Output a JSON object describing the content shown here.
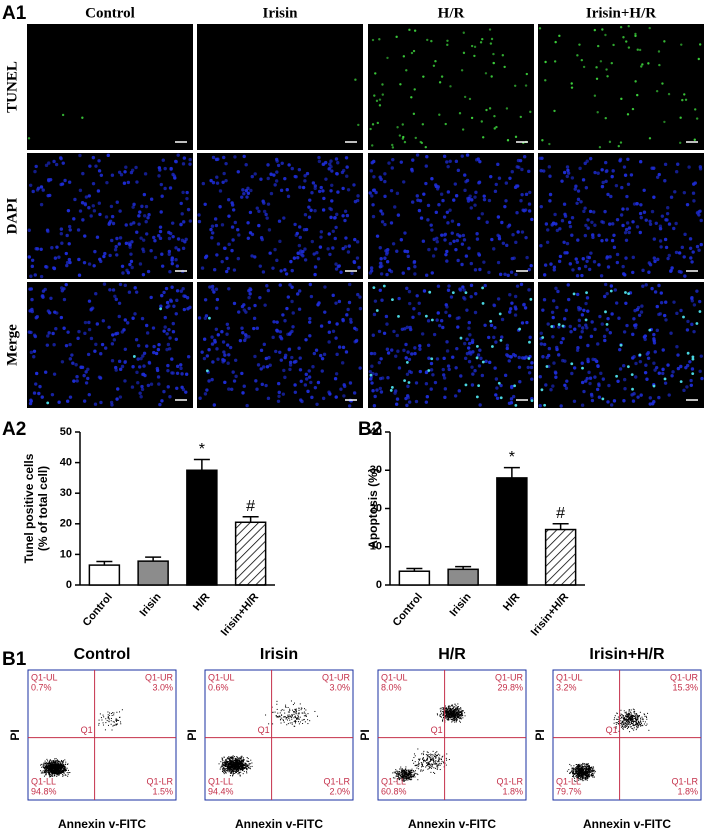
{
  "panel_a1": {
    "label": "A1",
    "columns": [
      "Control",
      "Irisin",
      "H/R",
      "Irisin+H/R"
    ],
    "rows": [
      "TUNEL",
      "DAPI",
      "Merge"
    ]
  },
  "chart_data": [
    {
      "type": "bar",
      "label": "A2",
      "ylabel": [
        "Tunel positive cells",
        "(% of total cell)"
      ],
      "categories": [
        "Control",
        "Irisin",
        "H/R",
        "Irisin+H/R"
      ],
      "values": [
        6.5,
        7.8,
        37.5,
        20.5
      ],
      "errors": [
        1.2,
        1.3,
        3.5,
        1.8
      ],
      "colors": [
        "#ffffff",
        "#8c8c8c",
        "#000000",
        "#ffffff"
      ],
      "hatch": [
        false,
        false,
        false,
        true
      ],
      "annotations": [
        null,
        null,
        "*",
        "#"
      ],
      "ylim": [
        0,
        50
      ],
      "yticks": [
        0,
        10,
        20,
        30,
        40,
        50
      ]
    },
    {
      "type": "bar",
      "label": "B2",
      "ylabel": [
        "Apoptosis (%)"
      ],
      "categories": [
        "Control",
        "Irisin",
        "H/R",
        "Irisin+H/R"
      ],
      "values": [
        3.6,
        4.1,
        28,
        14.5
      ],
      "errors": [
        0.7,
        0.7,
        2.7,
        1.5
      ],
      "colors": [
        "#ffffff",
        "#8c8c8c",
        "#000000",
        "#ffffff"
      ],
      "hatch": [
        false,
        false,
        false,
        true
      ],
      "annotations": [
        null,
        null,
        "*",
        "#"
      ],
      "ylim": [
        0,
        40
      ],
      "yticks": [
        0,
        10,
        20,
        30,
        40
      ]
    }
  ],
  "panel_b1": {
    "label": "B1",
    "xlabel": "Annexin v-FITC",
    "ylabel": "PI",
    "gate": "Q1",
    "plots": [
      {
        "title": "Control",
        "ul": [
          "Q1-UL",
          "0.7%"
        ],
        "ur": [
          "Q1-UR",
          "3.0%"
        ],
        "ll": [
          "Q1-LL",
          "94.8%"
        ],
        "lr": [
          "Q1-LR",
          "1.5%"
        ]
      },
      {
        "title": "Irisin",
        "ul": [
          "Q1-UL",
          "0.6%"
        ],
        "ur": [
          "Q1-UR",
          "3.0%"
        ],
        "ll": [
          "Q1-LL",
          "94.4%"
        ],
        "lr": [
          "Q1-LR",
          "2.0%"
        ]
      },
      {
        "title": "H/R",
        "ul": [
          "Q1-UL",
          "8.0%"
        ],
        "ur": [
          "Q1-UR",
          "29.8%"
        ],
        "ll": [
          "Q1-LL",
          "60.8%"
        ],
        "lr": [
          "Q1-LR",
          "1.8%"
        ]
      },
      {
        "title": "Irisin+H/R",
        "ul": [
          "Q1-UL",
          "3.2%"
        ],
        "ur": [
          "Q1-UR",
          "15.3%"
        ],
        "ll": [
          "Q1-LL",
          "79.7%"
        ],
        "lr": [
          "Q1-LR",
          "1.8%"
        ]
      }
    ]
  }
}
